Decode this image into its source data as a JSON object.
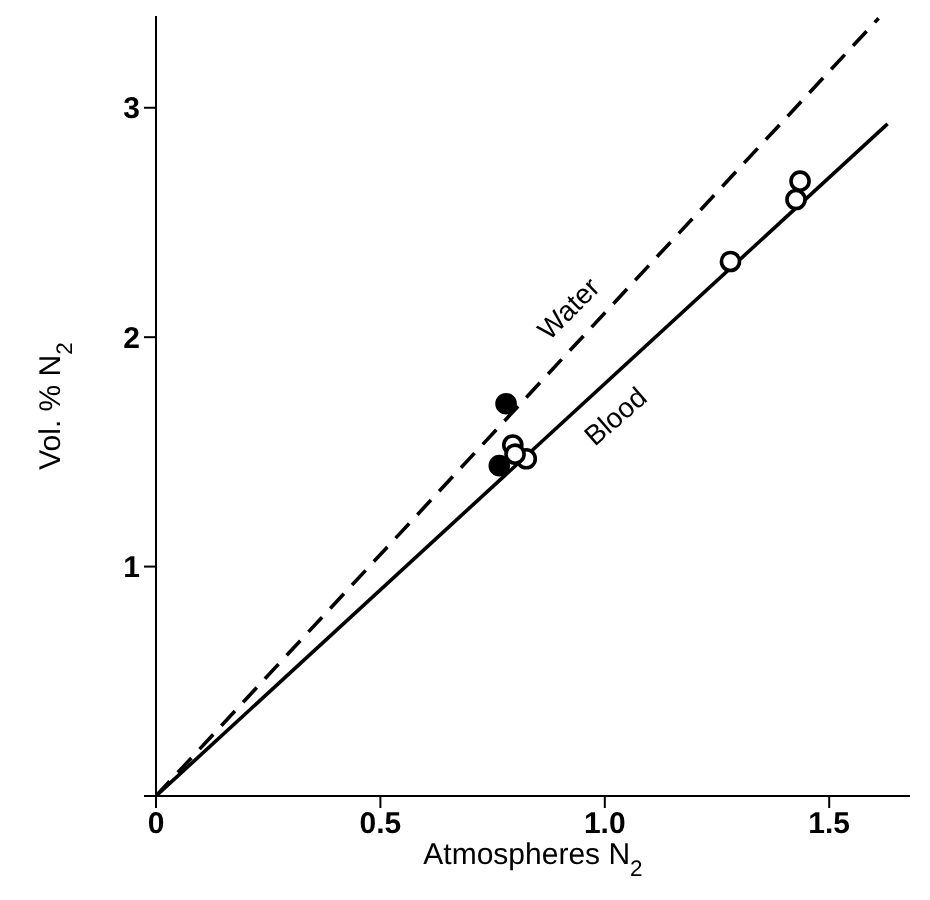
{
  "chart_data": {
    "type": "scatter",
    "xlabel": "Atmospheres N$_{2}$",
    "ylabel": "Vol. % N$_{2}$",
    "xlim": [
      0,
      1.68
    ],
    "ylim": [
      0,
      3.4
    ],
    "xticks": [
      0,
      {
        "value": 0.5,
        "label": "0.5"
      },
      {
        "value": 1,
        "label": "1.0"
      },
      {
        "value": 1.5,
        "label": "1.5"
      }
    ],
    "yticks": [
      {
        "value": 0,
        "label": null
      },
      1,
      2,
      3
    ],
    "legend": false,
    "marker": "circle",
    "series": [
      {
        "name": "Water",
        "type": "line",
        "color": "#000000",
        "line_style": "dashed",
        "marker": "none",
        "x": [
          0,
          1.61
        ],
        "values": [
          0,
          3.39
        ]
      },
      {
        "name": "Blood",
        "type": "line",
        "color": "#000000",
        "line_style": "solid",
        "marker": "none",
        "x": [
          0,
          1.63
        ],
        "values": [
          0,
          2.93
        ]
      },
      {
        "color": "#000000",
        "x": [
          0.78,
          0.765
        ],
        "values": [
          1.71,
          1.44
        ]
      },
      {
        "color": "#ffffff",
        "x": [
          0.795,
          0.825,
          0.8,
          1.28,
          1.435,
          1.426
        ],
        "values": [
          1.53,
          1.47,
          1.49,
          2.33,
          2.68,
          2.6
        ]
      }
    ]
  }
}
